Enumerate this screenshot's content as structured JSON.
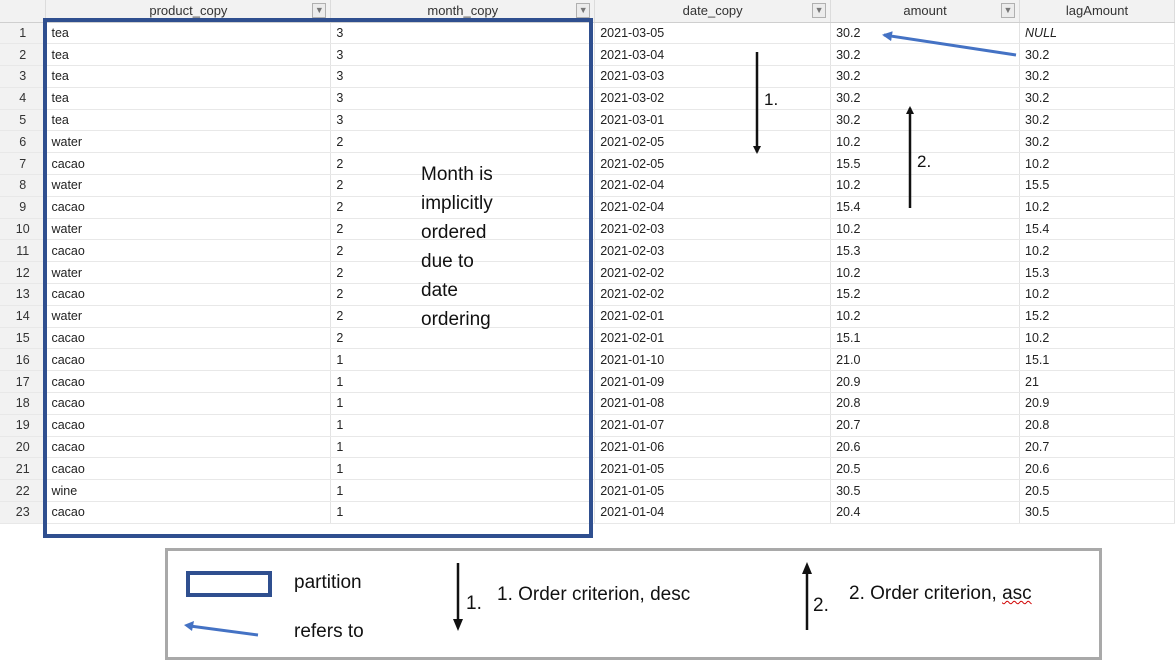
{
  "columns": [
    {
      "name": "product_copy",
      "filterable": true
    },
    {
      "name": "month_copy",
      "filterable": true
    },
    {
      "name": "date_copy",
      "filterable": true
    },
    {
      "name": "amount",
      "filterable": true
    },
    {
      "name": "lagAmount",
      "filterable": false
    }
  ],
  "rows": [
    {
      "n": "1",
      "product": "tea",
      "month": "3",
      "date": "2021-03-05",
      "amount": "30.2",
      "lag": "NULL"
    },
    {
      "n": "2",
      "product": "tea",
      "month": "3",
      "date": "2021-03-04",
      "amount": "30.2",
      "lag": "30.2"
    },
    {
      "n": "3",
      "product": "tea",
      "month": "3",
      "date": "2021-03-03",
      "amount": "30.2",
      "lag": "30.2"
    },
    {
      "n": "4",
      "product": "tea",
      "month": "3",
      "date": "2021-03-02",
      "amount": "30.2",
      "lag": "30.2"
    },
    {
      "n": "5",
      "product": "tea",
      "month": "3",
      "date": "2021-03-01",
      "amount": "30.2",
      "lag": "30.2"
    },
    {
      "n": "6",
      "product": "water",
      "month": "2",
      "date": "2021-02-05",
      "amount": "10.2",
      "lag": "30.2"
    },
    {
      "n": "7",
      "product": "cacao",
      "month": "2",
      "date": "2021-02-05",
      "amount": "15.5",
      "lag": "10.2"
    },
    {
      "n": "8",
      "product": "water",
      "month": "2",
      "date": "2021-02-04",
      "amount": "10.2",
      "lag": "15.5"
    },
    {
      "n": "9",
      "product": "cacao",
      "month": "2",
      "date": "2021-02-04",
      "amount": "15.4",
      "lag": "10.2"
    },
    {
      "n": "10",
      "product": "water",
      "month": "2",
      "date": "2021-02-03",
      "amount": "10.2",
      "lag": "15.4"
    },
    {
      "n": "11",
      "product": "cacao",
      "month": "2",
      "date": "2021-02-03",
      "amount": "15.3",
      "lag": "10.2"
    },
    {
      "n": "12",
      "product": "water",
      "month": "2",
      "date": "2021-02-02",
      "amount": "10.2",
      "lag": "15.3"
    },
    {
      "n": "13",
      "product": "cacao",
      "month": "2",
      "date": "2021-02-02",
      "amount": "15.2",
      "lag": "10.2"
    },
    {
      "n": "14",
      "product": "water",
      "month": "2",
      "date": "2021-02-01",
      "amount": "10.2",
      "lag": "15.2"
    },
    {
      "n": "15",
      "product": "cacao",
      "month": "2",
      "date": "2021-02-01",
      "amount": "15.1",
      "lag": "10.2"
    },
    {
      "n": "16",
      "product": "cacao",
      "month": "1",
      "date": "2021-01-10",
      "amount": "21.0",
      "lag": "15.1"
    },
    {
      "n": "17",
      "product": "cacao",
      "month": "1",
      "date": "2021-01-09",
      "amount": "20.9",
      "lag": "21"
    },
    {
      "n": "18",
      "product": "cacao",
      "month": "1",
      "date": "2021-01-08",
      "amount": "20.8",
      "lag": "20.9"
    },
    {
      "n": "19",
      "product": "cacao",
      "month": "1",
      "date": "2021-01-07",
      "amount": "20.7",
      "lag": "20.8"
    },
    {
      "n": "20",
      "product": "cacao",
      "month": "1",
      "date": "2021-01-06",
      "amount": "20.6",
      "lag": "20.7"
    },
    {
      "n": "21",
      "product": "cacao",
      "month": "1",
      "date": "2021-01-05",
      "amount": "20.5",
      "lag": "20.6"
    },
    {
      "n": "22",
      "product": "wine",
      "month": "1",
      "date": "2021-01-05",
      "amount": "30.5",
      "lag": "20.5"
    },
    {
      "n": "23",
      "product": "cacao",
      "month": "1",
      "date": "2021-01-04",
      "amount": "20.4",
      "lag": "30.5"
    }
  ],
  "annotation": {
    "note_lines": [
      "Month is",
      "implicitly",
      "ordered",
      "due to",
      "date",
      "ordering"
    ],
    "marker_desc": "1.",
    "marker_asc": "2."
  },
  "legend": {
    "partition": "partition",
    "refers_to": "refers to",
    "desc_num": "1.",
    "desc_text": "1. Order criterion, desc",
    "asc_num": "2.",
    "asc_text_main": "2. Order criterion, ",
    "asc_text_squiggle": "asc"
  },
  "colors": {
    "partition_border": "#2f4f8f",
    "refers_arrow": "#4472c4",
    "legend_border": "#a9a9a9"
  }
}
